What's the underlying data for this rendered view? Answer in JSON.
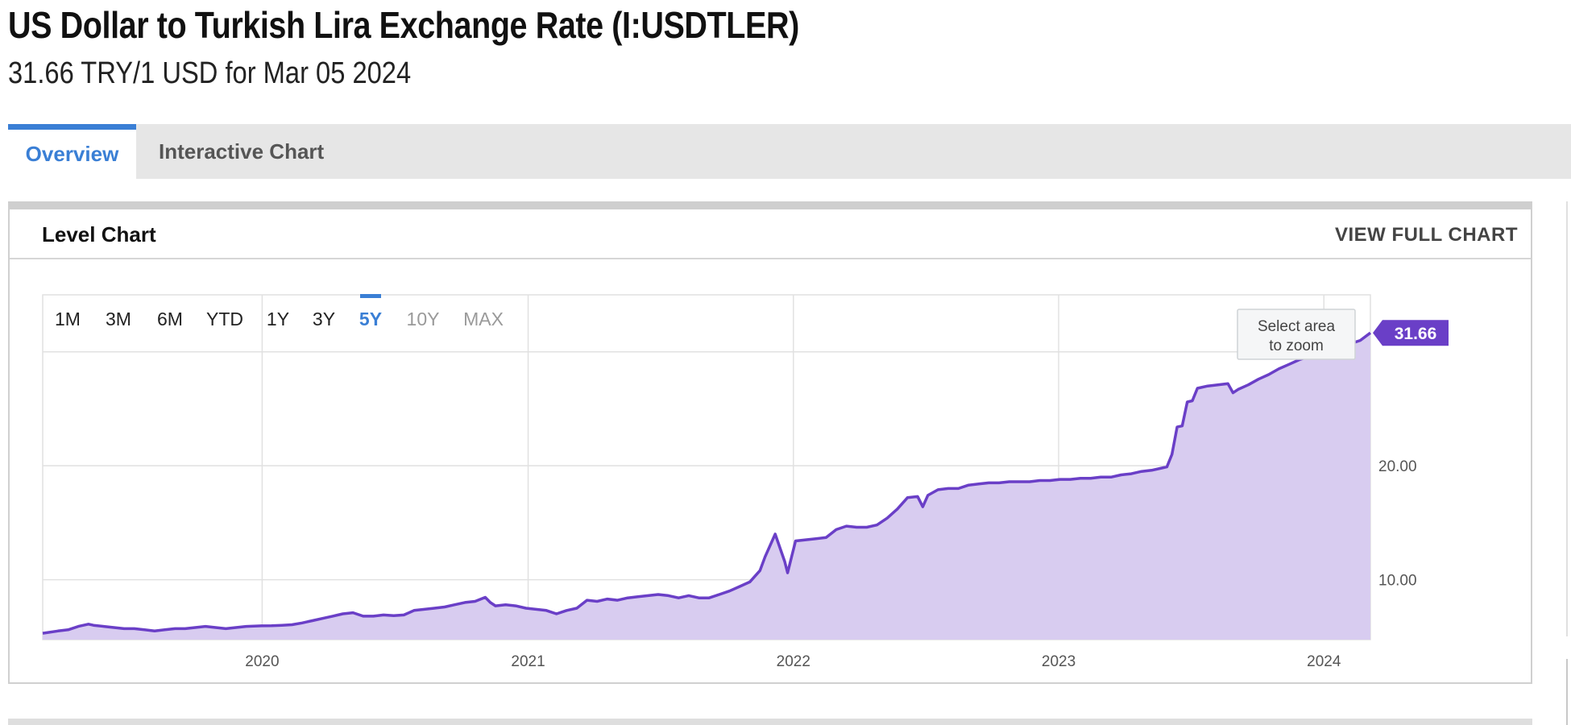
{
  "page": {
    "title": "US Dollar to Turkish Lira Exchange Rate (I:USDTLER)",
    "subtitle": "31.66 TRY/1 USD for Mar 05 2024"
  },
  "tabs": [
    {
      "label": "Overview",
      "active": true
    },
    {
      "label": "Interactive Chart",
      "active": false
    }
  ],
  "card": {
    "title": "Level Chart",
    "view_full_label": "VIEW FULL CHART"
  },
  "range_buttons": [
    {
      "label": "1M",
      "state": "normal"
    },
    {
      "label": "3M",
      "state": "normal"
    },
    {
      "label": "6M",
      "state": "normal"
    },
    {
      "label": "YTD",
      "state": "normal"
    },
    {
      "label": "1Y",
      "state": "normal"
    },
    {
      "label": "3Y",
      "state": "normal"
    },
    {
      "label": "5Y",
      "state": "active"
    },
    {
      "label": "10Y",
      "state": "disabled"
    },
    {
      "label": "MAX",
      "state": "disabled"
    }
  ],
  "zoom_hint": {
    "line1": "Select area",
    "line2": "to zoom"
  },
  "colors": {
    "accent": "#3a7fd5",
    "series_line": "#6a3fc7",
    "series_fill": "#d8ccf0",
    "label_bg": "#6a3fc7"
  },
  "chart_data": {
    "type": "area",
    "title": "",
    "xlabel": "",
    "ylabel": "",
    "x_ticks": [
      "2020",
      "2021",
      "2022",
      "2023",
      "2024"
    ],
    "y_ticks": [
      "10.00",
      "20.00"
    ],
    "xlim": [
      "2019-03-05",
      "2024-03-05"
    ],
    "ylim": [
      4.74,
      35.0
    ],
    "grid": true,
    "last_value_label": "31.66",
    "series": [
      {
        "x": [
          "2019-03-05",
          "2019-03-26",
          "2019-04-09",
          "2019-04-23",
          "2019-05-07",
          "2019-05-14",
          "2019-05-28",
          "2019-06-11",
          "2019-06-25",
          "2019-07-09",
          "2019-07-23",
          "2019-08-06",
          "2019-08-20",
          "2019-09-03",
          "2019-09-17",
          "2019-10-01",
          "2019-10-15",
          "2019-10-29",
          "2019-11-12",
          "2019-11-26",
          "2019-12-10",
          "2019-12-31",
          "2020-01-14",
          "2020-01-28",
          "2020-02-11",
          "2020-02-25",
          "2020-03-10",
          "2020-03-24",
          "2020-04-07",
          "2020-04-21",
          "2020-05-05",
          "2020-05-19",
          "2020-06-02",
          "2020-06-16",
          "2020-06-30",
          "2020-07-14",
          "2020-07-28",
          "2020-08-11",
          "2020-08-25",
          "2020-09-08",
          "2020-09-22",
          "2020-10-06",
          "2020-10-20",
          "2020-11-03",
          "2020-11-10",
          "2020-11-17",
          "2020-12-01",
          "2020-12-15",
          "2020-12-29",
          "2021-01-12",
          "2021-01-26",
          "2021-02-09",
          "2021-02-23",
          "2021-03-09",
          "2021-03-23",
          "2021-04-06",
          "2021-04-20",
          "2021-05-04",
          "2021-05-18",
          "2021-06-01",
          "2021-06-15",
          "2021-06-29",
          "2021-07-13",
          "2021-07-27",
          "2021-08-10",
          "2021-08-24",
          "2021-09-07",
          "2021-09-21",
          "2021-10-05",
          "2021-10-19",
          "2021-11-02",
          "2021-11-16",
          "2021-11-23",
          "2021-12-07",
          "2021-12-20",
          "2021-12-24",
          "2022-01-04",
          "2022-01-18",
          "2022-02-01",
          "2022-02-15",
          "2022-03-01",
          "2022-03-15",
          "2022-03-29",
          "2022-04-12",
          "2022-04-26",
          "2022-05-10",
          "2022-05-24",
          "2022-06-07",
          "2022-06-21",
          "2022-06-28",
          "2022-07-05",
          "2022-07-19",
          "2022-08-02",
          "2022-08-16",
          "2022-08-30",
          "2022-09-13",
          "2022-09-27",
          "2022-10-11",
          "2022-10-25",
          "2022-11-08",
          "2022-11-22",
          "2022-12-06",
          "2022-12-20",
          "2023-01-03",
          "2023-01-17",
          "2023-01-31",
          "2023-02-14",
          "2023-02-28",
          "2023-03-14",
          "2023-03-28",
          "2023-04-11",
          "2023-04-25",
          "2023-05-09",
          "2023-05-23",
          "2023-05-30",
          "2023-06-06",
          "2023-06-13",
          "2023-06-20",
          "2023-06-27",
          "2023-07-04",
          "2023-07-11",
          "2023-07-25",
          "2023-08-08",
          "2023-08-22",
          "2023-08-29",
          "2023-09-05",
          "2023-09-19",
          "2023-10-03",
          "2023-10-17",
          "2023-10-31",
          "2023-11-14",
          "2023-11-28",
          "2023-12-12",
          "2023-12-26",
          "2024-01-09",
          "2024-01-23",
          "2024-02-06",
          "2024-02-20",
          "2024-03-05"
        ],
        "values": [
          5.3,
          5.5,
          5.6,
          5.9,
          6.1,
          6.0,
          5.9,
          5.8,
          5.7,
          5.7,
          5.6,
          5.5,
          5.6,
          5.7,
          5.7,
          5.8,
          5.9,
          5.8,
          5.7,
          5.8,
          5.9,
          5.95,
          5.96,
          6.0,
          6.05,
          6.2,
          6.4,
          6.6,
          6.8,
          7.0,
          7.1,
          6.8,
          6.8,
          6.9,
          6.85,
          6.9,
          7.3,
          7.4,
          7.5,
          7.6,
          7.8,
          8.0,
          8.1,
          8.45,
          8.0,
          7.7,
          7.8,
          7.7,
          7.5,
          7.4,
          7.3,
          7.0,
          7.3,
          7.5,
          8.2,
          8.1,
          8.3,
          8.2,
          8.4,
          8.5,
          8.6,
          8.7,
          8.6,
          8.4,
          8.6,
          8.4,
          8.4,
          8.7,
          9.0,
          9.4,
          9.8,
          10.8,
          12.0,
          14.0,
          11.6,
          10.6,
          13.4,
          13.5,
          13.6,
          13.7,
          14.4,
          14.7,
          14.6,
          14.6,
          14.8,
          15.4,
          16.2,
          17.2,
          17.3,
          16.4,
          17.4,
          17.9,
          18.0,
          18.0,
          18.3,
          18.4,
          18.5,
          18.5,
          18.6,
          18.6,
          18.6,
          18.7,
          18.7,
          18.8,
          18.8,
          18.9,
          18.9,
          19.0,
          19.0,
          19.2,
          19.3,
          19.5,
          19.6,
          19.8,
          19.9,
          21.0,
          23.4,
          23.5,
          25.6,
          25.7,
          26.8,
          27.0,
          27.1,
          27.2,
          26.4,
          26.7,
          27.1,
          27.6,
          28.0,
          28.5,
          28.9,
          29.3,
          29.6,
          29.8,
          30.0,
          30.3,
          30.7,
          31.0,
          31.66
        ]
      }
    ]
  }
}
